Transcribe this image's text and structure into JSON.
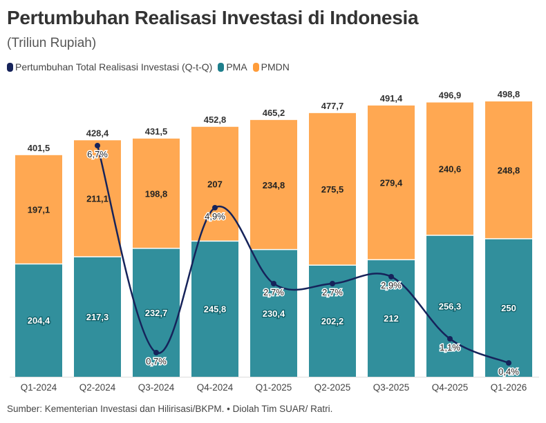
{
  "title": "Pertumbuhan Realisasi Investasi di Indonesia",
  "subtitle": "(Triliun Rupiah)",
  "source": "Sumber: Kementerian Investasi dan Hilirisasi/BKPM. • Diolah Tim SUAR/ Ratri.",
  "chart_data": {
    "type": "bar",
    "stacked": true,
    "categories": [
      "Q1-2024",
      "Q2-2024",
      "Q3-2024",
      "Q4-2024",
      "Q1-2025",
      "Q2-2025",
      "Q3-2025",
      "Q4-2025",
      "Q1-2026"
    ],
    "totals": [
      "401,5",
      "428,4",
      "431,5",
      "452,8",
      "465,2",
      "477,7",
      "491,4",
      "496,9",
      "498,8"
    ],
    "series": [
      {
        "name": "PMA",
        "color": "#318f9c",
        "values": [
          204.4,
          217.3,
          232.7,
          245.8,
          230.4,
          202.2,
          212,
          256.3,
          250
        ],
        "labels": [
          "204,4",
          "217,3",
          "232,7",
          "245,8",
          "230,4",
          "202,2",
          "212",
          "256,3",
          "250"
        ]
      },
      {
        "name": "PMDN",
        "color": "#ffa852",
        "values": [
          197.1,
          211.1,
          198.8,
          207,
          234.8,
          275.5,
          279.4,
          240.6,
          248.8
        ],
        "labels": [
          "197,1",
          "211,1",
          "198,8",
          "207",
          "234,8",
          "275,5",
          "279,4",
          "240,6",
          "248,8"
        ]
      }
    ],
    "line": {
      "name": "Pertumbuhan Total Realisasi Investasi (Q-t-Q)",
      "color": "#16235a",
      "values": [
        null,
        6.7,
        0.7,
        4.9,
        2.7,
        2.7,
        2.9,
        1.1,
        0.4
      ],
      "labels": [
        null,
        "6,7%",
        "0,7%",
        "4,9%",
        "2,7%",
        "2,7%",
        "2,9%",
        "1,1%",
        "0,4%"
      ]
    },
    "legend": "top-left",
    "grid": false
  }
}
